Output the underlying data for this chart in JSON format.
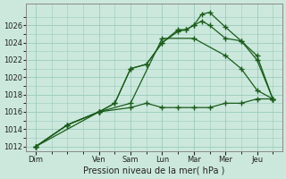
{
  "xlabel": "Pression niveau de la mer( hPa )",
  "bg_color": "#cce8dd",
  "grid_color": "#99ccbb",
  "line_color": "#1a5c1a",
  "ylim": [
    1011.5,
    1028.5
  ],
  "yticks": [
    1012,
    1014,
    1016,
    1018,
    1020,
    1022,
    1024,
    1026
  ],
  "x_labels": [
    "Dim",
    "Ven",
    "Sam",
    "Lun",
    "Mar",
    "Mer",
    "Jeu"
  ],
  "x_tick_pos": [
    0,
    2,
    3,
    4,
    5,
    6,
    7
  ],
  "xlim": [
    -0.3,
    7.8
  ],
  "series": [
    {
      "x": [
        0,
        2,
        3,
        3.5,
        4,
        4.5,
        5,
        5.5,
        6,
        6.5,
        7,
        7.5
      ],
      "y": [
        1012,
        1016,
        1016.5,
        1017,
        1016.5,
        1016.5,
        1016.5,
        1016.5,
        1017,
        1017,
        1017.5,
        1017.5
      ]
    },
    {
      "x": [
        0,
        1,
        2,
        2.5,
        3,
        3.5,
        4,
        4.5,
        4.75,
        5,
        5.25,
        5.5,
        6,
        6.5,
        7,
        7.5
      ],
      "y": [
        1012,
        1014.5,
        1016,
        1017,
        1021,
        1021.5,
        1024,
        1025.5,
        1025.5,
        1026,
        1027.3,
        1027.5,
        1025.8,
        1024.2,
        1022.5,
        1017.5
      ]
    },
    {
      "x": [
        0,
        1,
        2,
        2.5,
        3,
        3.5,
        4,
        4.5,
        4.75,
        5,
        5.25,
        5.5,
        6,
        6.5,
        7,
        7.5
      ],
      "y": [
        1012,
        1014.5,
        1016,
        1017,
        1021,
        1021.5,
        1024,
        1025.3,
        1025.5,
        1026,
        1026.5,
        1026,
        1024.5,
        1024.2,
        1022.0,
        1017.5
      ]
    },
    {
      "x": [
        0,
        1,
        2,
        3,
        4,
        5,
        6,
        6.5,
        7,
        7.5
      ],
      "y": [
        1012,
        1014.5,
        1016,
        1017,
        1024.5,
        1024.5,
        1022.5,
        1021,
        1018.5,
        1017.5
      ]
    }
  ]
}
